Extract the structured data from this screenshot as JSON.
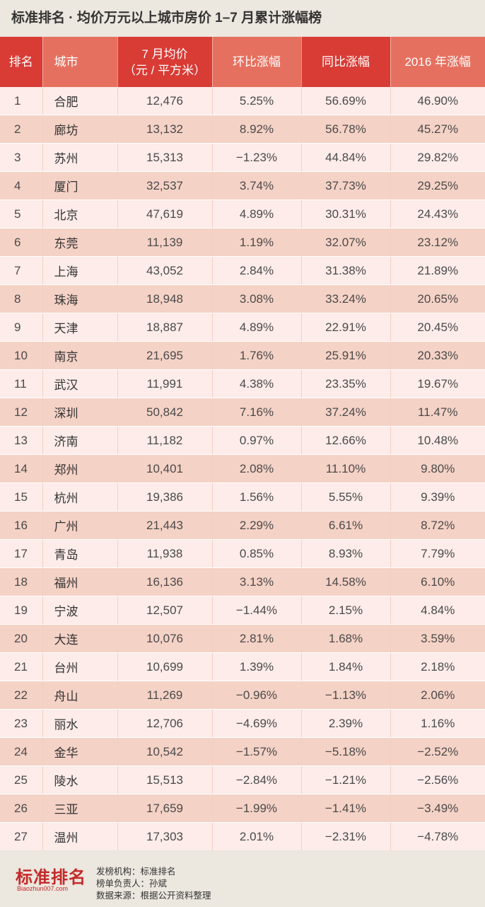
{
  "title": "标准排名 · 均价万元以上城市房价 1–7 月累计涨幅榜",
  "chart_data": {
    "type": "table",
    "columns": [
      {
        "key": "rank",
        "label": "排名"
      },
      {
        "key": "city",
        "label": "城市"
      },
      {
        "key": "price",
        "label": "7 月均价",
        "label_line2": "（元 / 平方米）"
      },
      {
        "key": "mom",
        "label": "环比涨幅"
      },
      {
        "key": "yoy",
        "label": "同比涨幅"
      },
      {
        "key": "ytd",
        "label": "2016 年涨幅"
      }
    ],
    "rows": [
      {
        "rank": "1",
        "city": "合肥",
        "price": "12,476",
        "mom": "5.25%",
        "yoy": "56.69%",
        "ytd": "46.90%"
      },
      {
        "rank": "2",
        "city": "廊坊",
        "price": "13,132",
        "mom": "8.92%",
        "yoy": "56.78%",
        "ytd": "45.27%"
      },
      {
        "rank": "3",
        "city": "苏州",
        "price": "15,313",
        "mom": "−1.23%",
        "yoy": "44.84%",
        "ytd": "29.82%"
      },
      {
        "rank": "4",
        "city": "厦门",
        "price": "32,537",
        "mom": "3.74%",
        "yoy": "37.73%",
        "ytd": "29.25%"
      },
      {
        "rank": "5",
        "city": "北京",
        "price": "47,619",
        "mom": "4.89%",
        "yoy": "30.31%",
        "ytd": "24.43%"
      },
      {
        "rank": "6",
        "city": "东莞",
        "price": "11,139",
        "mom": "1.19%",
        "yoy": "32.07%",
        "ytd": "23.12%"
      },
      {
        "rank": "7",
        "city": "上海",
        "price": "43,052",
        "mom": "2.84%",
        "yoy": "31.38%",
        "ytd": "21.89%"
      },
      {
        "rank": "8",
        "city": "珠海",
        "price": "18,948",
        "mom": "3.08%",
        "yoy": "33.24%",
        "ytd": "20.65%"
      },
      {
        "rank": "9",
        "city": "天津",
        "price": "18,887",
        "mom": "4.89%",
        "yoy": "22.91%",
        "ytd": "20.45%"
      },
      {
        "rank": "10",
        "city": "南京",
        "price": "21,695",
        "mom": "1.76%",
        "yoy": "25.91%",
        "ytd": "20.33%"
      },
      {
        "rank": "11",
        "city": "武汉",
        "price": "11,991",
        "mom": "4.38%",
        "yoy": "23.35%",
        "ytd": "19.67%"
      },
      {
        "rank": "12",
        "city": "深圳",
        "price": "50,842",
        "mom": "7.16%",
        "yoy": "37.24%",
        "ytd": "11.47%"
      },
      {
        "rank": "13",
        "city": "济南",
        "price": "11,182",
        "mom": "0.97%",
        "yoy": "12.66%",
        "ytd": "10.48%"
      },
      {
        "rank": "14",
        "city": "郑州",
        "price": "10,401",
        "mom": "2.08%",
        "yoy": "11.10%",
        "ytd": "9.80%"
      },
      {
        "rank": "15",
        "city": "杭州",
        "price": "19,386",
        "mom": "1.56%",
        "yoy": "5.55%",
        "ytd": "9.39%"
      },
      {
        "rank": "16",
        "city": "广州",
        "price": "21,443",
        "mom": "2.29%",
        "yoy": "6.61%",
        "ytd": "8.72%"
      },
      {
        "rank": "17",
        "city": "青岛",
        "price": "11,938",
        "mom": "0.85%",
        "yoy": "8.93%",
        "ytd": "7.79%"
      },
      {
        "rank": "18",
        "city": "福州",
        "price": "16,136",
        "mom": "3.13%",
        "yoy": "14.58%",
        "ytd": "6.10%"
      },
      {
        "rank": "19",
        "city": "宁波",
        "price": "12,507",
        "mom": "−1.44%",
        "yoy": "2.15%",
        "ytd": "4.84%"
      },
      {
        "rank": "20",
        "city": "大连",
        "price": "10,076",
        "mom": "2.81%",
        "yoy": "1.68%",
        "ytd": "3.59%"
      },
      {
        "rank": "21",
        "city": "台州",
        "price": "10,699",
        "mom": "1.39%",
        "yoy": "1.84%",
        "ytd": "2.18%"
      },
      {
        "rank": "22",
        "city": "舟山",
        "price": "11,269",
        "mom": "−0.96%",
        "yoy": "−1.13%",
        "ytd": "2.06%"
      },
      {
        "rank": "23",
        "city": "丽水",
        "price": "12,706",
        "mom": "−4.69%",
        "yoy": "2.39%",
        "ytd": "1.16%"
      },
      {
        "rank": "24",
        "city": "金华",
        "price": "10,542",
        "mom": "−1.57%",
        "yoy": "−5.18%",
        "ytd": "−2.52%"
      },
      {
        "rank": "25",
        "city": "陵水",
        "price": "15,513",
        "mom": "−2.84%",
        "yoy": "−1.21%",
        "ytd": "−2.56%"
      },
      {
        "rank": "26",
        "city": "三亚",
        "price": "17,659",
        "mom": "−1.99%",
        "yoy": "−1.41%",
        "ytd": "−3.49%"
      },
      {
        "rank": "27",
        "city": "温州",
        "price": "17,303",
        "mom": "2.01%",
        "yoy": "−2.31%",
        "ytd": "−4.78%"
      }
    ]
  },
  "footer": {
    "logo_text": "标准排名",
    "logo_url": "Biaozhun007.com",
    "lines": [
      "发榜机构：标准排名",
      "榜单负责人：孙斌",
      "数据来源：根据公开资料整理"
    ]
  },
  "colors": {
    "header_dark": "#d93b35",
    "header_light": "#e6705f",
    "row_odd": "#fdecea",
    "row_even": "#f5d2c6",
    "logo_red": "#c42a2a"
  }
}
